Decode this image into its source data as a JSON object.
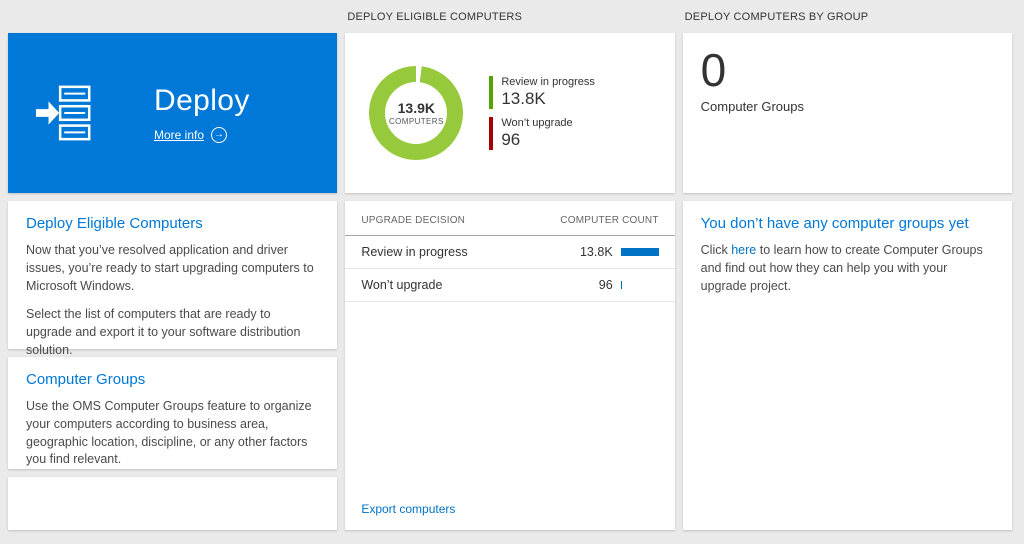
{
  "colors": {
    "tile_blue": "#0078d7",
    "link_blue": "#0072c6",
    "donut_green": "#97c93d",
    "legend_green": "#57a300",
    "legend_red": "#a80000",
    "bar_blue": "#0072c6"
  },
  "icons": {
    "more_info_arrow": "→"
  },
  "left": {
    "tile": {
      "title": "Deploy",
      "more_info_label": "More info"
    },
    "section1": {
      "heading": "Deploy Eligible Computers",
      "p1": "Now that you’ve resolved application and driver issues, you’re ready to start upgrading computers to Microsoft Windows.",
      "p2": "Select the list of computers that are ready to upgrade and export it to your software distribution solution."
    },
    "section2": {
      "heading": "Computer Groups",
      "p1": "Use the OMS Computer Groups feature to organize your computers according to business area, geographic location, discipline, or any other factors you find relevant."
    }
  },
  "middle": {
    "header": "DEPLOY ELIGIBLE COMPUTERS",
    "donut": {
      "center_value": "13.9K",
      "center_label": "COMPUTERS",
      "color": "#97c93d",
      "gap_deg": 7,
      "legend": [
        {
          "label": "Review in progress",
          "value": "13.8K",
          "color": "#57a300"
        },
        {
          "label": "Won’t upgrade",
          "value": "96",
          "color": "#a80000"
        }
      ]
    },
    "table": {
      "columns": [
        "UPGRADE DECISION",
        "COMPUTER COUNT"
      ],
      "bar_color": "#0072c6",
      "rows": [
        {
          "label": "Review in progress",
          "value": "13.8K",
          "bar_pct": 100
        },
        {
          "label": "Won’t upgrade",
          "value": "96",
          "bar_pct": 4
        }
      ]
    },
    "export_label": "Export computers"
  },
  "right": {
    "header": "DEPLOY COMPUTERS BY GROUP",
    "count": "0",
    "count_label": "Computer Groups",
    "empty": {
      "heading": "You don’t have any computer groups yet",
      "text_before": "Click ",
      "link_label": "here",
      "text_after": " to learn how to create Computer Groups and find out how they can help you with your upgrade project."
    }
  }
}
